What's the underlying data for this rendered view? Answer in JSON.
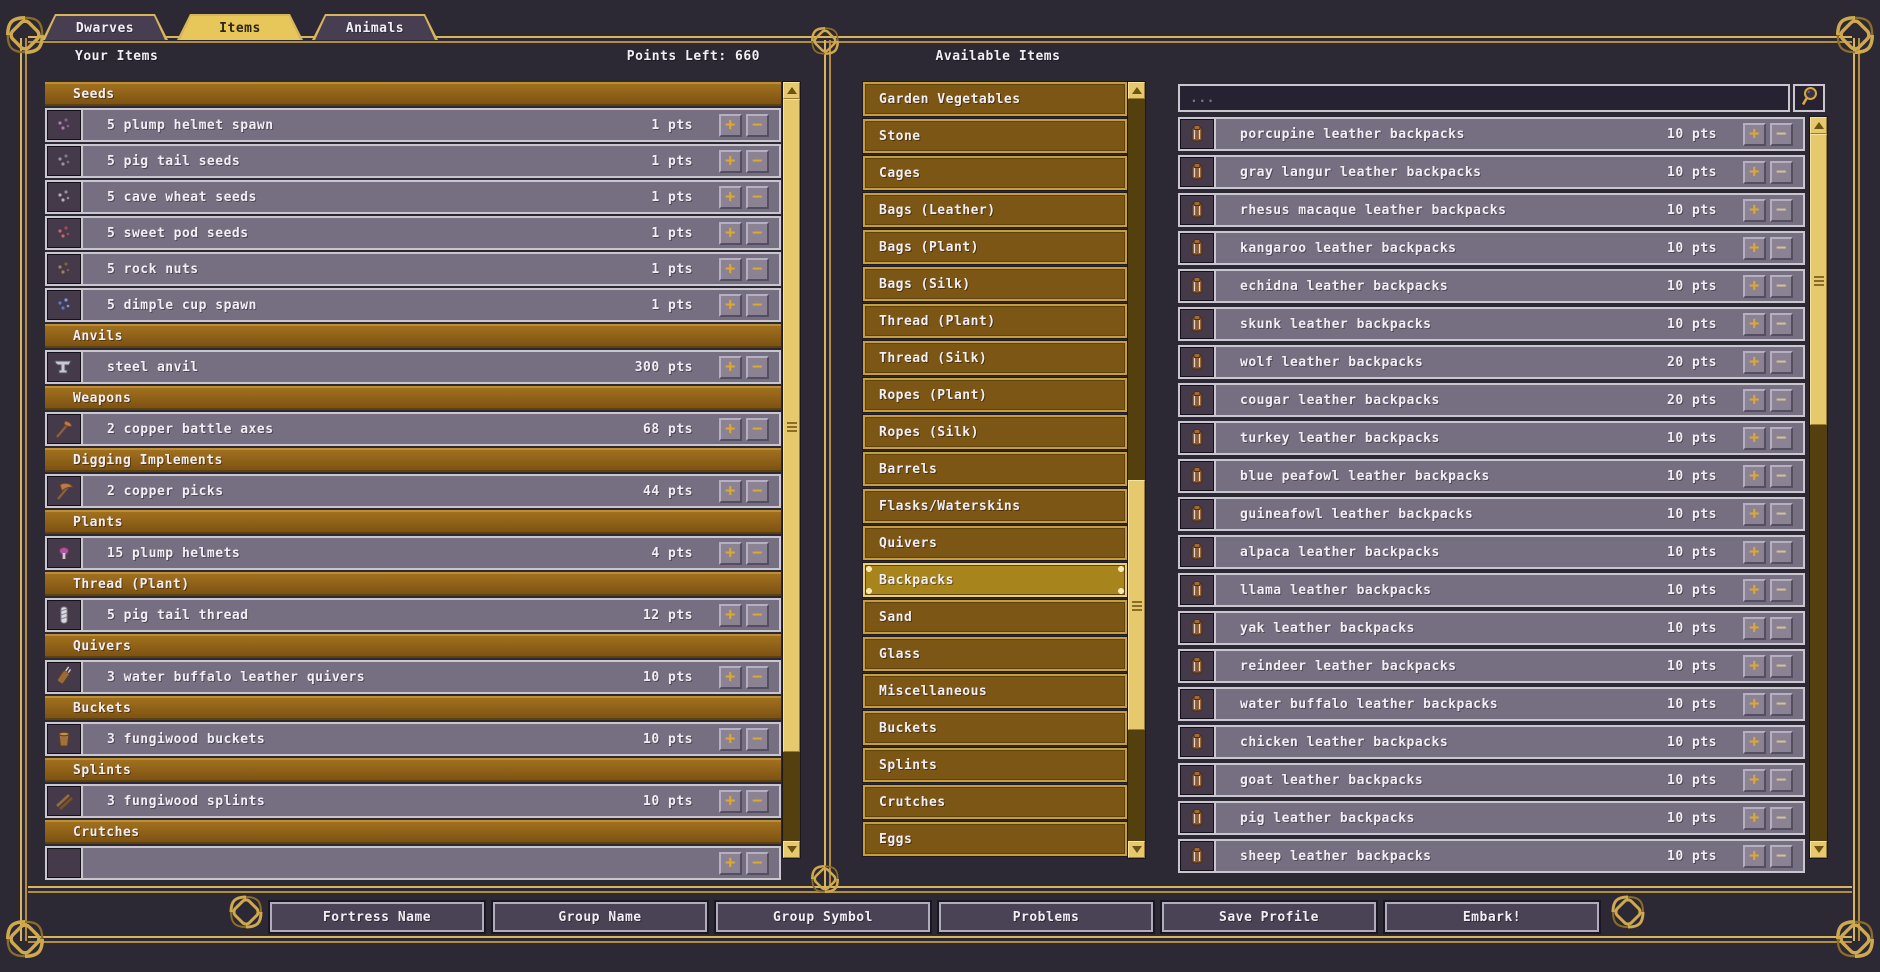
{
  "tabs": [
    {
      "label": "Dwarves",
      "active": false
    },
    {
      "label": "Items",
      "active": true
    },
    {
      "label": "Animals",
      "active": false
    }
  ],
  "left_panel": {
    "title": "Your Items",
    "points_left": "Points Left: 660",
    "sections": [
      {
        "header": "Seeds",
        "items": [
          {
            "icon": "seed-purple",
            "label": "5 plump helmet spawn",
            "pts": "1 pts"
          },
          {
            "icon": "seed-gray",
            "label": "5 pig tail seeds",
            "pts": "1 pts"
          },
          {
            "icon": "seed-pale",
            "label": "5 cave wheat seeds",
            "pts": "1 pts"
          },
          {
            "icon": "seed-red",
            "label": "5 sweet pod seeds",
            "pts": "1 pts"
          },
          {
            "icon": "seed-brown",
            "label": "5 rock nuts",
            "pts": "1 pts"
          },
          {
            "icon": "seed-blue",
            "label": "5 dimple cup spawn",
            "pts": "1 pts"
          }
        ]
      },
      {
        "header": "Anvils",
        "items": [
          {
            "icon": "anvil",
            "label": "steel anvil",
            "pts": "300 pts"
          }
        ]
      },
      {
        "header": "Weapons",
        "items": [
          {
            "icon": "axe",
            "label": "2 copper battle axes",
            "pts": "68 pts"
          }
        ]
      },
      {
        "header": "Digging Implements",
        "items": [
          {
            "icon": "pick",
            "label": "2 copper picks",
            "pts": "44 pts"
          }
        ]
      },
      {
        "header": "Plants",
        "items": [
          {
            "icon": "mushroom",
            "label": "15 plump helmets",
            "pts": "4 pts"
          }
        ]
      },
      {
        "header": "Thread (Plant)",
        "items": [
          {
            "icon": "thread",
            "label": "5 pig tail thread",
            "pts": "12 pts"
          }
        ]
      },
      {
        "header": "Quivers",
        "items": [
          {
            "icon": "quiver",
            "label": "3 water buffalo leather quivers",
            "pts": "10 pts"
          }
        ]
      },
      {
        "header": "Buckets",
        "items": [
          {
            "icon": "bucket",
            "label": "3 fungiwood buckets",
            "pts": "10 pts"
          }
        ]
      },
      {
        "header": "Splints",
        "items": [
          {
            "icon": "splint",
            "label": "3 fungiwood splints",
            "pts": "10 pts"
          }
        ]
      },
      {
        "header": "Crutches",
        "items": [
          {
            "icon": "empty",
            "label": "",
            "pts": "",
            "partial": true
          }
        ]
      }
    ]
  },
  "middle_panel": {
    "title": "Available Items",
    "categories": [
      {
        "label": "Garden Vegetables"
      },
      {
        "label": "Stone"
      },
      {
        "label": "Cages"
      },
      {
        "label": "Bags (Leather)"
      },
      {
        "label": "Bags (Plant)"
      },
      {
        "label": "Bags (Silk)"
      },
      {
        "label": "Thread (Plant)"
      },
      {
        "label": "Thread (Silk)"
      },
      {
        "label": "Ropes (Plant)"
      },
      {
        "label": "Ropes (Silk)"
      },
      {
        "label": "Barrels"
      },
      {
        "label": "Flasks/Waterskins"
      },
      {
        "label": "Quivers"
      },
      {
        "label": "Backpacks",
        "selected": true
      },
      {
        "label": "Sand"
      },
      {
        "label": "Glass"
      },
      {
        "label": "Miscellaneous"
      },
      {
        "label": "Buckets"
      },
      {
        "label": "Splints"
      },
      {
        "label": "Crutches"
      },
      {
        "label": "Eggs"
      }
    ]
  },
  "right_panel": {
    "search_placeholder": "...",
    "minus_disabled": true,
    "items": [
      {
        "icon": "backpack",
        "label": "porcupine leather backpacks",
        "pts": "10 pts"
      },
      {
        "icon": "backpack",
        "label": "gray langur leather backpacks",
        "pts": "10 pts"
      },
      {
        "icon": "backpack",
        "label": "rhesus macaque leather backpacks",
        "pts": "10 pts"
      },
      {
        "icon": "backpack",
        "label": "kangaroo leather backpacks",
        "pts": "10 pts"
      },
      {
        "icon": "backpack",
        "label": "echidna leather backpacks",
        "pts": "10 pts"
      },
      {
        "icon": "backpack",
        "label": "skunk leather backpacks",
        "pts": "10 pts"
      },
      {
        "icon": "backpack",
        "label": "wolf leather backpacks",
        "pts": "20 pts"
      },
      {
        "icon": "backpack",
        "label": "cougar leather backpacks",
        "pts": "20 pts"
      },
      {
        "icon": "backpack",
        "label": "turkey leather backpacks",
        "pts": "10 pts"
      },
      {
        "icon": "backpack",
        "label": "blue peafowl leather backpacks",
        "pts": "10 pts"
      },
      {
        "icon": "backpack",
        "label": "guineafowl leather backpacks",
        "pts": "10 pts"
      },
      {
        "icon": "backpack",
        "label": "alpaca leather backpacks",
        "pts": "10 pts"
      },
      {
        "icon": "backpack",
        "label": "llama leather backpacks",
        "pts": "10 pts"
      },
      {
        "icon": "backpack",
        "label": "yak leather backpacks",
        "pts": "10 pts"
      },
      {
        "icon": "backpack",
        "label": "reindeer leather backpacks",
        "pts": "10 pts"
      },
      {
        "icon": "backpack",
        "label": "water buffalo leather backpacks",
        "pts": "10 pts"
      },
      {
        "icon": "backpack",
        "label": "chicken leather backpacks",
        "pts": "10 pts"
      },
      {
        "icon": "backpack",
        "label": "goat leather backpacks",
        "pts": "10 pts"
      },
      {
        "icon": "backpack",
        "label": "pig leather backpacks",
        "pts": "10 pts"
      },
      {
        "icon": "backpack",
        "label": "sheep leather backpacks",
        "pts": "10 pts"
      }
    ]
  },
  "bottom_buttons": [
    {
      "label": "Fortress Name"
    },
    {
      "label": "Group Name"
    },
    {
      "label": "Group Symbol"
    },
    {
      "label": "Problems"
    },
    {
      "label": "Save Profile"
    },
    {
      "label": "Embark!"
    }
  ],
  "colors": {
    "background": "#2c2834",
    "gold": "#d8b55a",
    "tab_active": "#e7c759",
    "section_header": "#8e6018",
    "row": "#766e81",
    "category": "#7c5614",
    "category_selected": "#a8841d",
    "scroll_thumb": "#e5c96c"
  }
}
